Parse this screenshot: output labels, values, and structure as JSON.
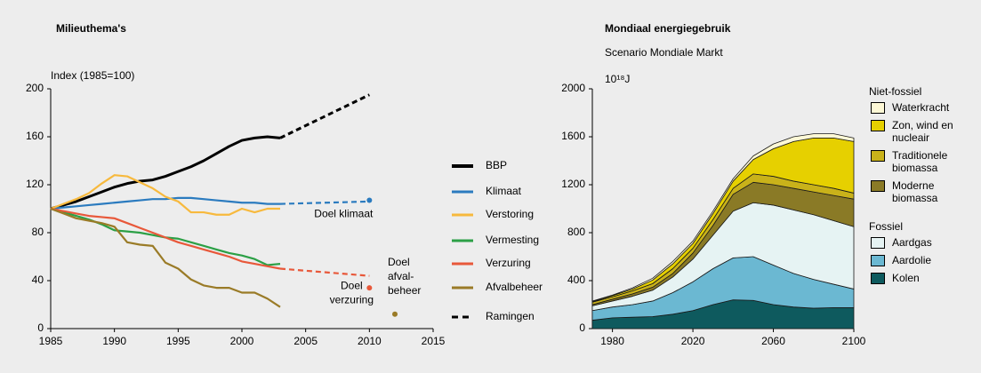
{
  "chart_data": [
    {
      "type": "line",
      "title": "Milieuthema's",
      "y_label": "Index (1985=100)",
      "x": [
        1985,
        1986,
        1987,
        1988,
        1989,
        1990,
        1991,
        1992,
        1993,
        1994,
        1995,
        1996,
        1997,
        1998,
        1999,
        2000,
        2001,
        2002,
        2003
      ],
      "xlim": [
        1985,
        2015
      ],
      "xticks": [
        1985,
        1990,
        1995,
        2000,
        2005,
        2010,
        2015
      ],
      "ylim": [
        0,
        200
      ],
      "yticks": [
        0,
        40,
        80,
        120,
        160,
        200
      ],
      "projection_label": "Ramingen",
      "projection_color": "#000000",
      "series": [
        {
          "name": "BBP",
          "color": "#000000",
          "values": [
            100,
            103,
            106,
            110,
            114,
            118,
            121,
            123,
            124,
            127,
            131,
            135,
            140,
            146,
            152,
            157,
            159,
            160,
            159
          ],
          "projection": {
            "x": [
              2003,
              2010
            ],
            "values": [
              159,
              195
            ]
          }
        },
        {
          "name": "Klimaat",
          "color": "#2b7bbf",
          "values": [
            100,
            101,
            102,
            103,
            104,
            105,
            106,
            107,
            108,
            108,
            109,
            109,
            108,
            107,
            106,
            105,
            105,
            104,
            104
          ],
          "projection": {
            "x": [
              2003,
              2010
            ],
            "values": [
              104,
              106
            ]
          }
        },
        {
          "name": "Verstoring",
          "color": "#f7b93d",
          "values": [
            100,
            104,
            108,
            113,
            121,
            128,
            127,
            122,
            117,
            110,
            106,
            97,
            97,
            95,
            95,
            100,
            97,
            100,
            100
          ]
        },
        {
          "name": "Vermesting",
          "color": "#2ca046",
          "values": [
            100,
            97,
            94,
            91,
            87,
            82,
            81,
            80,
            78,
            76,
            75,
            72,
            69,
            66,
            63,
            61,
            58,
            53,
            54
          ]
        },
        {
          "name": "Verzuring",
          "color": "#e8583a",
          "values": [
            100,
            98,
            96,
            94,
            93,
            92,
            88,
            84,
            80,
            76,
            72,
            69,
            66,
            63,
            60,
            56,
            54,
            52,
            50
          ],
          "projection": {
            "x": [
              2003,
              2010
            ],
            "values": [
              50,
              44
            ]
          }
        },
        {
          "name": "Afvalbeheer",
          "color": "#9a7b27",
          "values": [
            100,
            96,
            92,
            90,
            88,
            85,
            72,
            70,
            69,
            55,
            50,
            41,
            36,
            34,
            34,
            30,
            30,
            25,
            18
          ]
        }
      ],
      "targets": [
        {
          "label": [
            "Doel klimaat"
          ],
          "x": 2010,
          "value": 107,
          "color": "#2b7bbf"
        },
        {
          "label": [
            "Doel",
            "verzuring"
          ],
          "x": 2010,
          "value": 34,
          "color": "#e8583a"
        },
        {
          "label": [
            "Doel",
            "afval-",
            "beheer"
          ],
          "x": 2012,
          "value": 12,
          "color": "#9a7b27"
        }
      ]
    },
    {
      "type": "area",
      "title": "Mondiaal energiegebruik",
      "subtitle": "Scenario Mondiale Markt",
      "y_label": "10¹⁸J",
      "x": [
        1970,
        1980,
        1990,
        2000,
        2010,
        2020,
        2030,
        2040,
        2050,
        2060,
        2070,
        2080,
        2090,
        2100
      ],
      "xlim": [
        1970,
        2100
      ],
      "xticks": [
        1980,
        2020,
        2060,
        2100
      ],
      "ylim": [
        0,
        2000
      ],
      "yticks": [
        0,
        400,
        800,
        1200,
        1600,
        2000
      ],
      "series_groups": [
        {
          "name": "Niet-fossiel",
          "series": [
            {
              "name": "Waterkracht",
              "color": "#fdf8d6",
              "values": [
                5,
                5,
                10,
                15,
                20,
                20,
                20,
                20,
                30,
                40,
                40,
                35,
                35,
                30
              ]
            },
            {
              "name": "Zon, wind en nucleair",
              "color": "#e6d000",
              "values": [
                5,
                10,
                15,
                30,
                40,
                40,
                50,
                60,
                120,
                230,
                330,
                390,
                420,
                430
              ]
            },
            {
              "name": "Traditionele biomassa",
              "color": "#c9b21a",
              "values": [
                20,
                20,
                25,
                30,
                40,
                40,
                50,
                50,
                70,
                70,
                60,
                60,
                60,
                50
              ]
            },
            {
              "name": "Moderne biomassa",
              "color": "#8a7a26",
              "values": [
                10,
                15,
                20,
                25,
                30,
                50,
                80,
                140,
                170,
                170,
                180,
                190,
                210,
                230
              ]
            }
          ]
        },
        {
          "name": "Fossiel",
          "series": [
            {
              "name": "Aardgas",
              "color": "#e6f3f3",
              "values": [
                40,
                50,
                70,
                90,
                130,
                190,
                280,
                390,
                450,
                500,
                530,
                540,
                530,
                520
              ]
            },
            {
              "name": "Aardolie",
              "color": "#6bb8d2",
              "values": [
                80,
                90,
                105,
                130,
                180,
                240,
                300,
                350,
                365,
                330,
                280,
                240,
                195,
                155
              ]
            },
            {
              "name": "Kolen",
              "color": "#0e5a5e",
              "values": [
                70,
                90,
                95,
                100,
                120,
                150,
                200,
                240,
                235,
                200,
                180,
                170,
                175,
                175
              ]
            }
          ]
        }
      ]
    }
  ]
}
